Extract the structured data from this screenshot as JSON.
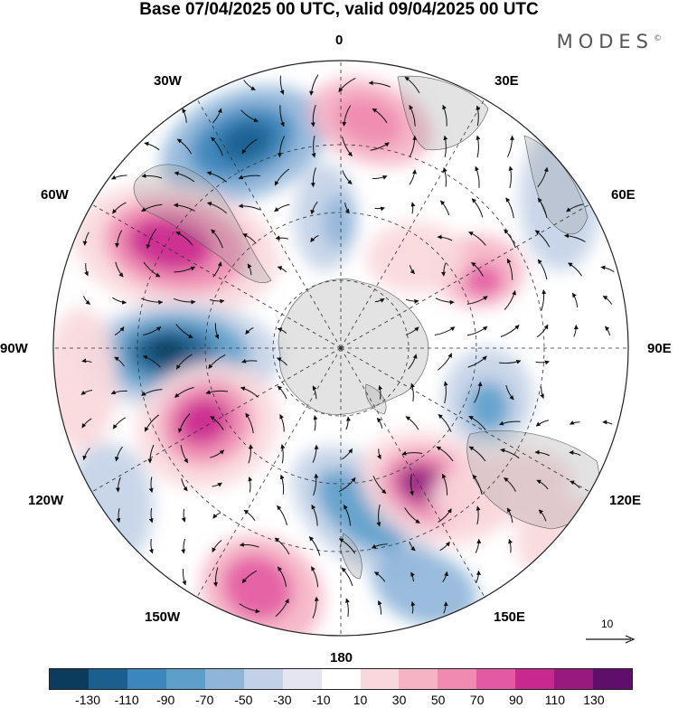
{
  "title": "Base 07/04/2025 00 UTC, valid 09/04/2025 00 UTC",
  "brand": {
    "name": "MODES",
    "mark": "©"
  },
  "longitude_labels": {
    "lon_0": "0",
    "lon_30e": "30E",
    "lon_60e": "60E",
    "lon_90e": "90E",
    "lon_120e": "120E",
    "lon_150e": "150E",
    "lon_180": "180",
    "lon_150w": "150W",
    "lon_120w": "120W",
    "lon_90w": "90W",
    "lon_60w": "60W",
    "lon_30w": "30W"
  },
  "reference_vector": {
    "label": "10"
  },
  "colorbar": {
    "colors": [
      "#0b3c5d",
      "#1a5f8f",
      "#3a86bd",
      "#5d9ecb",
      "#8fb5d9",
      "#c3d1e7",
      "#e5e5f2",
      "#ffffff",
      "#f9d8dc",
      "#f5b3c4",
      "#f08ab0",
      "#e35aa3",
      "#c9298f",
      "#991a7f",
      "#5f0f6b"
    ],
    "tick_labels": [
      "-130",
      "-110",
      "-90",
      "-70",
      "-50",
      "-30",
      "-10",
      "10",
      "30",
      "50",
      "70",
      "90",
      "110",
      "130"
    ]
  }
}
